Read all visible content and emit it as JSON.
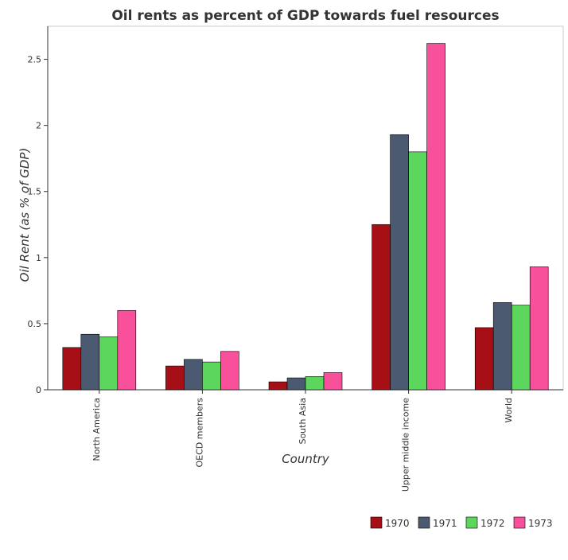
{
  "chart_data": {
    "type": "bar",
    "title": "Oil rents as percent of GDP towards fuel resources",
    "xlabel": "Country",
    "ylabel": "Oil Rent (as % of GDP)",
    "categories": [
      "North America",
      "OECD members",
      "South Asia",
      "Upper middle income",
      "World"
    ],
    "series": [
      {
        "name": "1970",
        "color": "#a50f15",
        "values": [
          0.32,
          0.18,
          0.06,
          1.25,
          0.47
        ]
      },
      {
        "name": "1971",
        "color": "#4b5a70",
        "values": [
          0.42,
          0.23,
          0.09,
          1.93,
          0.66
        ]
      },
      {
        "name": "1972",
        "color": "#5cd65c",
        "values": [
          0.4,
          0.21,
          0.1,
          1.8,
          0.64
        ]
      },
      {
        "name": "1973",
        "color": "#f9509b",
        "values": [
          0.6,
          0.29,
          0.13,
          2.62,
          0.93
        ]
      }
    ],
    "ylim": [
      0,
      2.75
    ],
    "yticks": [
      0,
      0.5,
      1,
      1.5,
      2,
      2.5
    ],
    "ytick_labels": [
      "0",
      "0.5",
      "1",
      "1.5",
      "2",
      "2.5"
    ],
    "grid": false,
    "legend_position": "bottom-right"
  }
}
